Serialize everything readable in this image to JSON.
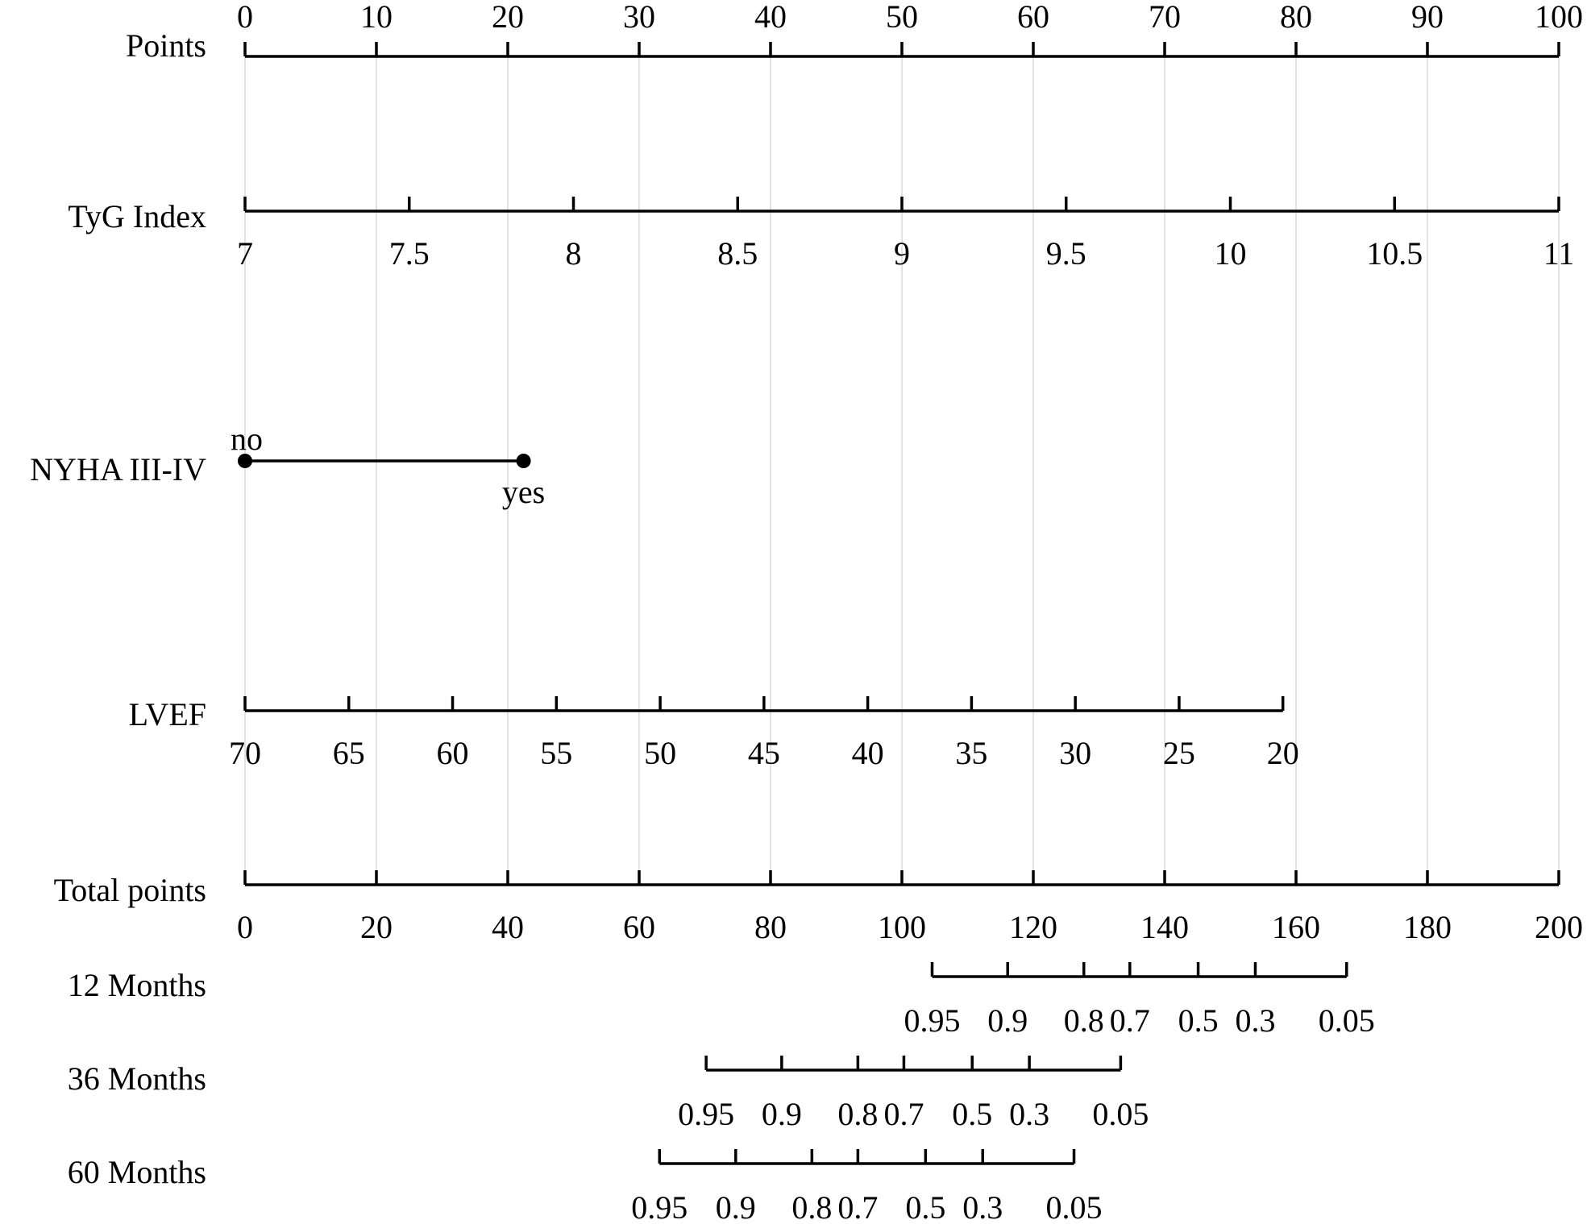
{
  "chart_data": {
    "type": "nomogram",
    "points_scale": {
      "label": "Points",
      "min": 0,
      "max": 100
    },
    "rows": [
      {
        "key": "points",
        "label": "Points",
        "kind": "axis",
        "labels_position": "above",
        "ticks": [
          {
            "value": 0,
            "label": "0",
            "points": 0
          },
          {
            "value": 10,
            "label": "10",
            "points": 10
          },
          {
            "value": 20,
            "label": "20",
            "points": 20
          },
          {
            "value": 30,
            "label": "30",
            "points": 30
          },
          {
            "value": 40,
            "label": "40",
            "points": 40
          },
          {
            "value": 50,
            "label": "50",
            "points": 50
          },
          {
            "value": 60,
            "label": "60",
            "points": 60
          },
          {
            "value": 70,
            "label": "70",
            "points": 70
          },
          {
            "value": 80,
            "label": "80",
            "points": 80
          },
          {
            "value": 90,
            "label": "90",
            "points": 90
          },
          {
            "value": 100,
            "label": "100",
            "points": 100
          }
        ]
      },
      {
        "key": "tyg",
        "label": "TyG Index",
        "kind": "axis",
        "labels_position": "below",
        "ticks": [
          {
            "value": 7,
            "label": "7",
            "points": 0
          },
          {
            "value": 7.5,
            "label": "7.5",
            "points": 12.5
          },
          {
            "value": 8,
            "label": "8",
            "points": 25
          },
          {
            "value": 8.5,
            "label": "8.5",
            "points": 37.5
          },
          {
            "value": 9,
            "label": "9",
            "points": 50
          },
          {
            "value": 9.5,
            "label": "9.5",
            "points": 62.5
          },
          {
            "value": 10,
            "label": "10",
            "points": 75
          },
          {
            "value": 10.5,
            "label": "10.5",
            "points": 87.5
          },
          {
            "value": 11,
            "label": "11",
            "points": 100
          }
        ]
      },
      {
        "key": "nyha",
        "label": "NYHA III-IV",
        "kind": "categorical",
        "categories": [
          {
            "label": "no",
            "points": 0,
            "label_position": "above"
          },
          {
            "label": "yes",
            "points": 21.2,
            "label_position": "below"
          }
        ]
      },
      {
        "key": "lvef",
        "label": "LVEF",
        "kind": "axis",
        "labels_position": "below",
        "ticks": [
          {
            "value": 70,
            "label": "70",
            "points": 0
          },
          {
            "value": 65,
            "label": "65",
            "points": 7.9
          },
          {
            "value": 60,
            "label": "60",
            "points": 15.8
          },
          {
            "value": 55,
            "label": "55",
            "points": 23.7
          },
          {
            "value": 50,
            "label": "50",
            "points": 31.6
          },
          {
            "value": 45,
            "label": "45",
            "points": 39.5
          },
          {
            "value": 40,
            "label": "40",
            "points": 47.4
          },
          {
            "value": 35,
            "label": "35",
            "points": 55.3
          },
          {
            "value": 30,
            "label": "30",
            "points": 63.2
          },
          {
            "value": 25,
            "label": "25",
            "points": 71.1
          },
          {
            "value": 20,
            "label": "20",
            "points": 79
          }
        ]
      },
      {
        "key": "total",
        "label": "Total points",
        "kind": "axis",
        "labels_position": "below",
        "ticks": [
          {
            "value": 0,
            "label": "0",
            "total": 0
          },
          {
            "value": 20,
            "label": "20",
            "total": 20
          },
          {
            "value": 40,
            "label": "40",
            "total": 40
          },
          {
            "value": 60,
            "label": "60",
            "total": 60
          },
          {
            "value": 80,
            "label": "80",
            "total": 80
          },
          {
            "value": 100,
            "label": "100",
            "total": 100
          },
          {
            "value": 120,
            "label": "120",
            "total": 120
          },
          {
            "value": 140,
            "label": "140",
            "total": 140
          },
          {
            "value": 160,
            "label": "160",
            "total": 160
          },
          {
            "value": 180,
            "label": "180",
            "total": 180
          },
          {
            "value": 200,
            "label": "200",
            "total": 200
          }
        ]
      },
      {
        "key": "m12",
        "label": "12 Months",
        "kind": "axis",
        "labels_position": "below",
        "ticks": [
          {
            "value": 0.95,
            "label": "0.95",
            "total": 104.6
          },
          {
            "value": 0.9,
            "label": "0.9",
            "total": 116.1
          },
          {
            "value": 0.8,
            "label": "0.8",
            "total": 127.7
          },
          {
            "value": 0.7,
            "label": "0.7",
            "total": 134.7
          },
          {
            "value": 0.5,
            "label": "0.5",
            "total": 145.1
          },
          {
            "value": 0.3,
            "label": "0.3",
            "total": 153.8
          },
          {
            "value": 0.05,
            "label": "0.05",
            "total": 167.7
          }
        ]
      },
      {
        "key": "m36",
        "label": "36 Months",
        "kind": "axis",
        "labels_position": "below",
        "ticks": [
          {
            "value": 0.95,
            "label": "0.95",
            "total": 70.2
          },
          {
            "value": 0.9,
            "label": "0.9",
            "total": 81.7
          },
          {
            "value": 0.8,
            "label": "0.8",
            "total": 93.3
          },
          {
            "value": 0.7,
            "label": "0.7",
            "total": 100.3
          },
          {
            "value": 0.5,
            "label": "0.5",
            "total": 110.7
          },
          {
            "value": 0.3,
            "label": "0.3",
            "total": 119.4
          },
          {
            "value": 0.05,
            "label": "0.05",
            "total": 133.3
          }
        ]
      },
      {
        "key": "m60",
        "label": "60 Months",
        "kind": "axis",
        "labels_position": "below",
        "ticks": [
          {
            "value": 0.95,
            "label": "0.95",
            "total": 63.1
          },
          {
            "value": 0.9,
            "label": "0.9",
            "total": 74.7
          },
          {
            "value": 0.8,
            "label": "0.8",
            "total": 86.3
          },
          {
            "value": 0.7,
            "label": "0.7",
            "total": 93.3
          },
          {
            "value": 0.5,
            "label": "0.5",
            "total": 103.6
          },
          {
            "value": 0.3,
            "label": "0.3",
            "total": 112.3
          },
          {
            "value": 0.05,
            "label": "0.05",
            "total": 126.2
          }
        ]
      }
    ],
    "grid": true
  }
}
